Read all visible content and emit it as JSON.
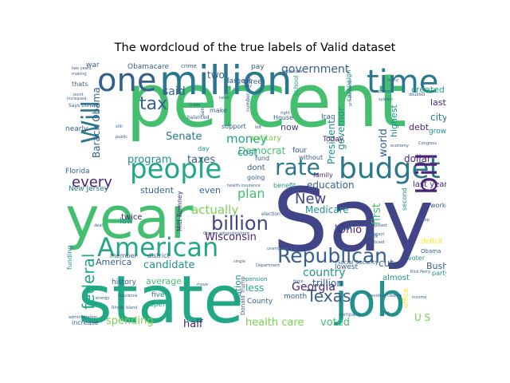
{
  "figure": {
    "title": "The wordcloud of the true labels of Valid dataset"
  },
  "palette": {
    "dark_purple": "#482576",
    "indigo": "#414487",
    "blue": "#355f8d",
    "steel": "#2a788e",
    "teal": "#21918c",
    "sea": "#22a884",
    "green": "#44bf70",
    "lime": "#7ad151",
    "yellow": "#bddf26",
    "gold": "#fde725"
  },
  "words": [
    {
      "text": "percent",
      "color": "green",
      "size": 92
    },
    {
      "text": "Say",
      "color": "indigo",
      "size": 110
    },
    {
      "text": "state",
      "color": "sea",
      "size": 82
    },
    {
      "text": "year",
      "color": "green",
      "size": 72
    },
    {
      "text": "million",
      "color": "steel",
      "size": 50
    },
    {
      "text": "job",
      "color": "teal",
      "size": 58
    },
    {
      "text": "time",
      "color": "steel",
      "size": 40
    },
    {
      "text": "one",
      "color": "blue",
      "size": 40
    },
    {
      "text": "budget",
      "color": "steel",
      "size": 36
    },
    {
      "text": "people",
      "color": "sea",
      "size": 34
    },
    {
      "text": "American",
      "color": "sea",
      "size": 32
    },
    {
      "text": "bill",
      "color": "dark_purple",
      "size": 36
    },
    {
      "text": "Will",
      "color": "steel",
      "size": 30
    },
    {
      "text": "rate",
      "color": "steel",
      "size": 28
    },
    {
      "text": "Republican",
      "color": "blue",
      "size": 25
    },
    {
      "text": "billion",
      "color": "indigo",
      "size": 24
    },
    {
      "text": "tax",
      "color": "blue",
      "size": 22
    },
    {
      "text": "Texas",
      "color": "blue",
      "size": 20
    },
    {
      "text": "government",
      "color": "blue",
      "size": 14
    },
    {
      "text": "federal",
      "color": "sea",
      "size": 20
    },
    {
      "text": "New",
      "color": "indigo",
      "size": 18
    },
    {
      "text": "every",
      "color": "dark_purple",
      "size": 18
    },
    {
      "text": "plan",
      "color": "green",
      "size": 16
    },
    {
      "text": "money",
      "color": "sea",
      "size": 15
    },
    {
      "text": "actually",
      "color": "lime",
      "size": 15
    },
    {
      "text": "Wisconsin",
      "color": "dark_purple",
      "size": 13
    },
    {
      "text": "Georgia",
      "color": "dark_purple",
      "size": 14
    },
    {
      "text": "country",
      "color": "teal",
      "size": 14
    },
    {
      "text": "candidate",
      "color": "teal",
      "size": 13
    },
    {
      "text": "spending",
      "color": "lime",
      "size": 13
    },
    {
      "text": "health care",
      "color": "lime",
      "size": 13
    },
    {
      "text": "voted",
      "color": "green",
      "size": 13
    },
    {
      "text": "half",
      "color": "dark_purple",
      "size": 13
    },
    {
      "text": "Barack Obama",
      "color": "blue",
      "size": 12
    },
    {
      "text": "program",
      "color": "teal",
      "size": 13
    },
    {
      "text": "taxes",
      "color": "blue",
      "size": 13
    },
    {
      "text": "Senate",
      "color": "steel",
      "size": 13
    },
    {
      "text": "said",
      "color": "blue",
      "size": 14
    },
    {
      "text": "two",
      "color": "blue",
      "size": 12
    },
    {
      "text": "Democrat",
      "color": "green",
      "size": 12
    },
    {
      "text": "cost",
      "color": "teal",
      "size": 12
    },
    {
      "text": "student",
      "color": "blue",
      "size": 11
    },
    {
      "text": "even",
      "color": "blue",
      "size": 11
    },
    {
      "text": "education",
      "color": "blue",
      "size": 12
    },
    {
      "text": "Medicare",
      "color": "teal",
      "size": 12
    },
    {
      "text": "trillion",
      "color": "blue",
      "size": 12
    },
    {
      "text": "Ohio",
      "color": "dark_purple",
      "size": 13
    },
    {
      "text": "first",
      "color": "green",
      "size": 14
    },
    {
      "text": "world",
      "color": "blue",
      "size": 13
    },
    {
      "text": "President",
      "color": "teal",
      "size": 12
    },
    {
      "text": "governor",
      "color": "teal",
      "size": 12
    },
    {
      "text": "dollar",
      "color": "dark_purple",
      "size": 12
    },
    {
      "text": "last year",
      "color": "dark_purple",
      "size": 10
    },
    {
      "text": "city",
      "color": "steel",
      "size": 12
    },
    {
      "text": "last",
      "color": "dark_purple",
      "size": 11
    },
    {
      "text": "created",
      "color": "sea",
      "size": 11
    },
    {
      "text": "growth",
      "color": "teal",
      "size": 9
    },
    {
      "text": "debt",
      "color": "dark_purple",
      "size": 11
    },
    {
      "text": "nearly",
      "color": "blue",
      "size": 9
    },
    {
      "text": "largest",
      "color": "blue",
      "size": 9
    },
    {
      "text": "highest",
      "color": "teal",
      "size": 11
    },
    {
      "text": "military",
      "color": "lime",
      "size": 10
    },
    {
      "text": "now",
      "color": "indigo",
      "size": 11
    },
    {
      "text": "Today",
      "color": "dark_purple",
      "size": 9
    },
    {
      "text": "fund",
      "color": "blue",
      "size": 8
    },
    {
      "text": "four",
      "color": "blue",
      "size": 9
    },
    {
      "text": "without",
      "color": "blue",
      "size": 8
    },
    {
      "text": "family",
      "color": "dark_purple",
      "size": 8
    },
    {
      "text": "second",
      "color": "teal",
      "size": 8
    },
    {
      "text": "worker",
      "color": "blue",
      "size": 8
    },
    {
      "text": "took",
      "color": "blue",
      "size": 10
    },
    {
      "text": "cut",
      "color": "blue",
      "size": 12
    },
    {
      "text": "deficit",
      "color": "gold",
      "size": 9
    },
    {
      "text": "Bush",
      "color": "blue",
      "size": 11
    },
    {
      "text": "voter",
      "color": "teal",
      "size": 8
    },
    {
      "text": "party",
      "color": "teal",
      "size": 8
    },
    {
      "text": "almost",
      "color": "teal",
      "size": 10
    },
    {
      "text": "lowest",
      "color": "blue",
      "size": 9
    },
    {
      "text": "U S",
      "color": "lime",
      "size": 12
    },
    {
      "text": "office",
      "color": "gold",
      "size": 9
    },
    {
      "text": "month",
      "color": "blue",
      "size": 9
    },
    {
      "text": "less",
      "color": "sea",
      "size": 12
    },
    {
      "text": "nation",
      "color": "teal",
      "size": 11
    },
    {
      "text": "County",
      "color": "blue",
      "size": 9
    },
    {
      "text": "average",
      "color": "green",
      "size": 11
    },
    {
      "text": "five",
      "color": "teal",
      "size": 9
    },
    {
      "text": "spend",
      "color": "sea",
      "size": 9
    },
    {
      "text": "history",
      "color": "blue",
      "size": 9
    },
    {
      "text": "member",
      "color": "blue",
      "size": 8
    },
    {
      "text": "district",
      "color": "blue",
      "size": 8
    },
    {
      "text": "America",
      "color": "blue",
      "size": 11
    },
    {
      "text": "law",
      "color": "teal",
      "size": 10
    },
    {
      "text": "twice",
      "color": "dark_purple",
      "size": 10
    },
    {
      "text": "Mitt Romney",
      "color": "dark_purple",
      "size": 8
    },
    {
      "text": "New Jersey",
      "color": "steel",
      "size": 9
    },
    {
      "text": "Florida",
      "color": "blue",
      "size": 9
    },
    {
      "text": "funding",
      "color": "teal",
      "size": 8
    },
    {
      "text": "increase",
      "color": "blue",
      "size": 8
    },
    {
      "text": "dont",
      "color": "blue",
      "size": 10
    },
    {
      "text": "going",
      "color": "blue",
      "size": 8
    },
    {
      "text": "support",
      "color": "blue",
      "size": 8
    },
    {
      "text": "make",
      "color": "blue",
      "size": 8
    },
    {
      "text": "day",
      "color": "teal",
      "size": 8
    },
    {
      "text": "three",
      "color": "blue",
      "size": 9
    },
    {
      "text": "pay",
      "color": "blue",
      "size": 9
    },
    {
      "text": "crime",
      "color": "blue",
      "size": 7
    },
    {
      "text": "Obamacare",
      "color": "blue",
      "size": 9
    },
    {
      "text": "war",
      "color": "blue",
      "size": 9
    },
    {
      "text": "thats",
      "color": "blue",
      "size": 8
    },
    {
      "text": "Iraq",
      "color": "blue",
      "size": 9
    },
    {
      "text": "House",
      "color": "blue",
      "size": 8
    },
    {
      "text": "school",
      "color": "sea",
      "size": 8
    },
    {
      "text": "campaign",
      "color": "teal",
      "size": 8
    },
    {
      "text": "Social Security",
      "color": "blue",
      "size": 7
    },
    {
      "text": "benefit",
      "color": "teal",
      "size": 8
    },
    {
      "text": "pension",
      "color": "teal",
      "size": 7
    },
    {
      "text": "Donald Trump",
      "color": "blue",
      "size": 7
    },
    {
      "text": "election",
      "color": "blue",
      "size": 6
    },
    {
      "text": "Says Donald",
      "color": "blue",
      "size": 6
    },
    {
      "text": "balanced",
      "color": "blue",
      "size": 6
    },
    {
      "text": "two years",
      "color": "blue",
      "size": 5
    },
    {
      "text": "making",
      "color": "blue",
      "size": 5
    },
    {
      "text": "public",
      "color": "blue",
      "size": 5
    },
    {
      "text": "still",
      "color": "blue",
      "size": 5
    },
    {
      "text": "trade",
      "color": "blue",
      "size": 5
    },
    {
      "text": "Sen",
      "color": "blue",
      "size": 6
    },
    {
      "text": "number",
      "color": "blue",
      "size": 6
    },
    {
      "text": "Congress",
      "color": "blue",
      "size": 5
    },
    {
      "text": "economy",
      "color": "blue",
      "size": 5
    },
    {
      "text": "system",
      "color": "blue",
      "size": 5
    },
    {
      "text": "power",
      "color": "blue",
      "size": 5
    },
    {
      "text": "doubled",
      "color": "blue",
      "size": 5
    },
    {
      "text": "employee",
      "color": "blue",
      "size": 5
    },
    {
      "text": "private sector",
      "color": "blue",
      "size": 5
    },
    {
      "text": "many",
      "color": "blue",
      "size": 5
    },
    {
      "text": "Rhode Island",
      "color": "blue",
      "size": 5
    },
    {
      "text": "energy",
      "color": "blue",
      "size": 5
    },
    {
      "text": "insurance",
      "color": "blue",
      "size": 5
    },
    {
      "text": "Medicaid",
      "color": "blue",
      "size": 5
    },
    {
      "text": "proposed",
      "color": "blue",
      "size": 5
    },
    {
      "text": "lost",
      "color": "blue",
      "size": 5
    },
    {
      "text": "company",
      "color": "blue",
      "size": 6
    },
    {
      "text": "increased",
      "color": "blue",
      "size": 5
    },
    {
      "text": "Department",
      "color": "blue",
      "size": 5
    },
    {
      "text": "unemployment",
      "color": "blue",
      "size": 5
    },
    {
      "text": "administration",
      "color": "blue",
      "size": 5
    },
    {
      "text": "income",
      "color": "blue",
      "size": 5
    },
    {
      "text": "Rick Perry",
      "color": "blue",
      "size": 5
    },
    {
      "text": "Obama",
      "color": "blue",
      "size": 7
    },
    {
      "text": "keep",
      "color": "blue",
      "size": 5
    },
    {
      "text": "project",
      "color": "blue",
      "size": 5
    },
    {
      "text": "work",
      "color": "blue",
      "size": 6
    },
    {
      "text": "single",
      "color": "blue",
      "size": 5
    },
    {
      "text": "gay",
      "color": "blue",
      "size": 5
    },
    {
      "text": "raise",
      "color": "blue",
      "size": 5
    },
    {
      "text": "right",
      "color": "blue",
      "size": 5
    },
    {
      "text": "point",
      "color": "blue",
      "size": 5
    },
    {
      "text": "left",
      "color": "blue",
      "size": 5
    },
    {
      "text": "deal",
      "color": "blue",
      "size": 5
    },
    {
      "text": "move",
      "color": "blue",
      "size": 5
    },
    {
      "text": "force",
      "color": "blue",
      "size": 5
    },
    {
      "text": "President Obama",
      "color": "blue",
      "size": 5
    },
    {
      "text": "health insurance",
      "color": "blue",
      "size": 5
    },
    {
      "text": "Obama administration",
      "color": "blue",
      "size": 5
    }
  ]
}
